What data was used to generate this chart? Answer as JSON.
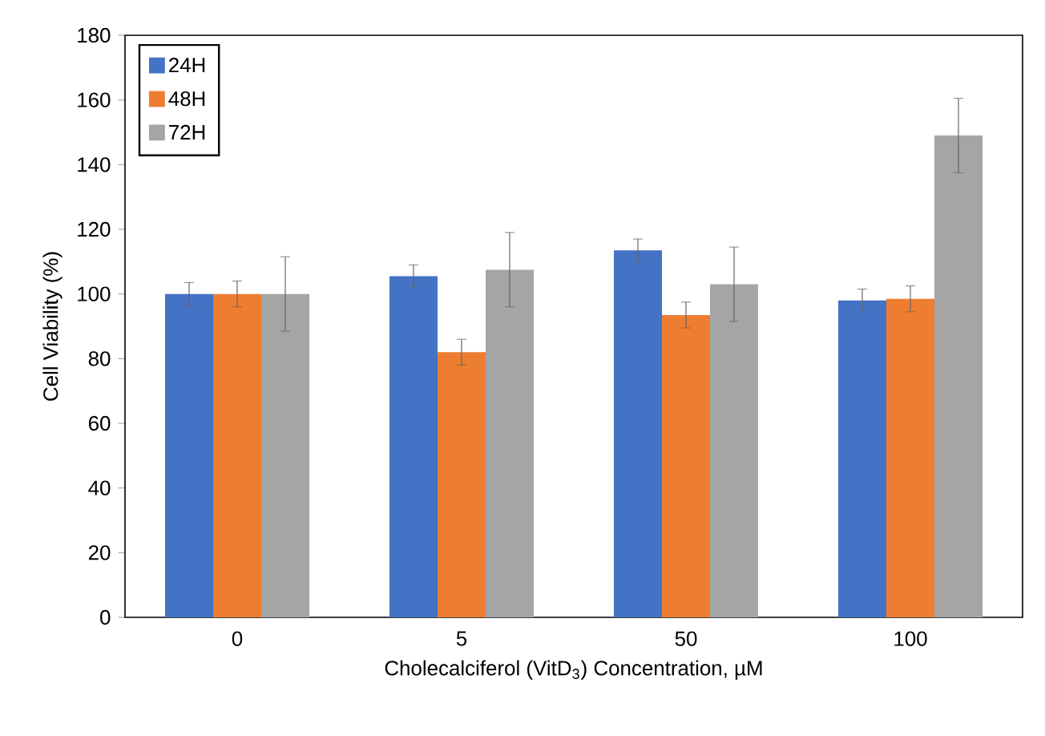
{
  "chart_data": {
    "type": "bar",
    "xlabel": "Cholecalciferol (VitD$_{3}$) Concentration, µM",
    "ylabel": "Cell Viability (%)",
    "categories": [
      "0",
      "5",
      "50",
      "100"
    ],
    "series": [
      {
        "name": "24H",
        "color": "#4472c4",
        "values": [
          100,
          105.5,
          113.5,
          98
        ],
        "errors": [
          3.5,
          3.5,
          3.5,
          3.5
        ]
      },
      {
        "name": "48H",
        "color": "#ed7d31",
        "values": [
          100,
          82,
          93.5,
          98.5
        ],
        "errors": [
          4,
          4,
          4,
          4
        ]
      },
      {
        "name": "72H",
        "color": "#a5a5a5",
        "values": [
          100,
          107.5,
          103,
          149
        ],
        "errors": [
          11.5,
          11.5,
          11.5,
          11.5
        ]
      }
    ],
    "ylim": [
      0,
      180
    ],
    "yticks": [
      0,
      20,
      40,
      60,
      80,
      100,
      120,
      140,
      160,
      180
    ],
    "grid": false,
    "legend": "top left"
  }
}
